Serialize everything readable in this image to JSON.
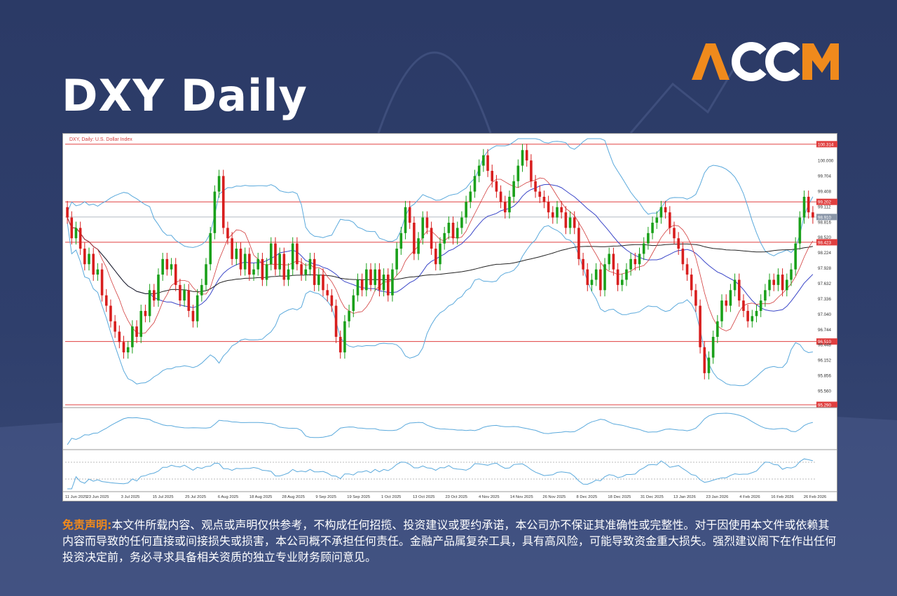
{
  "header": {
    "title": "DXY Daily",
    "logo_text": "ACCM",
    "brand_color": "#f08a1c"
  },
  "disclaimer": {
    "heading": "免责声明:",
    "text": "本文件所载内容、观点或声明仅供参考，不构成任何招揽、投资建议或要约承诺，本公司亦不保证其准确性或完整性。对于因使用本文件或依赖其内容而导致的任何直接或间接损失或损害，本公司概不承担任何责任。金融产品属复杂工具，具有高风险，可能导致资金重大损失。强烈建议阁下在作出任何投资决定前，务必寻求具备相关资质的独立专业财务顾问意见。"
  },
  "chart_data": {
    "type": "candlestick",
    "title": "DXY, Daily: U.S. Dollar Index",
    "price_ticks": [
      "100.314",
      "100.000",
      "99.704",
      "99.408",
      "99.202",
      "99.112",
      "98.910",
      "98.816",
      "98.520",
      "98.423",
      "98.224",
      "97.928",
      "97.632",
      "97.336",
      "97.040",
      "96.744",
      "96.510",
      "96.448",
      "96.152",
      "95.856",
      "95.560",
      "95.290"
    ],
    "ylim": [
      95.29,
      100.42
    ],
    "horizontal_levels": [
      100.314,
      99.202,
      98.423,
      96.51,
      95.29
    ],
    "current_price": 98.91,
    "x_ticks": [
      "11 Jun 2025",
      "23 Jun 2025",
      "3 Jul 2025",
      "15 Jul 2025",
      "25 Jul 2025",
      "6 Aug 2025",
      "18 Aug 2025",
      "28 Aug 2025",
      "9 Sep 2025",
      "19 Sep 2025",
      "1 Oct 2025",
      "13 Oct 2025",
      "23 Oct 2025",
      "4 Nov 2025",
      "14 Nov 2025",
      "26 Nov 2025",
      "8 Dec 2025",
      "18 Dec 2025",
      "31 Dec 2025",
      "13 Jan 2026",
      "23 Jan 2026",
      "4 Feb 2026",
      "16 Feb 2026",
      "26 Feb 2026"
    ],
    "close": [
      98.9,
      98.5,
      98.7,
      98.3,
      98.0,
      98.2,
      97.8,
      97.9,
      97.4,
      97.2,
      96.9,
      96.7,
      96.5,
      96.3,
      96.4,
      96.8,
      96.6,
      97.1,
      97.0,
      97.5,
      97.3,
      97.8,
      98.1,
      97.9,
      98.0,
      97.6,
      97.3,
      97.5,
      97.1,
      96.9,
      97.4,
      97.6,
      98.0,
      98.6,
      99.4,
      99.7,
      98.7,
      98.5,
      98.1,
      98.3,
      97.9,
      98.2,
      97.8,
      97.9,
      98.1,
      97.7,
      98.0,
      98.4,
      97.9,
      98.2,
      97.7,
      97.9,
      98.4,
      98.0,
      97.8,
      97.9,
      98.1,
      97.6,
      97.8,
      97.5,
      97.4,
      97.2,
      96.6,
      96.3,
      96.9,
      97.1,
      97.4,
      97.7,
      97.5,
      97.9,
      97.6,
      97.9,
      97.5,
      97.8,
      97.4,
      97.9,
      98.3,
      98.6,
      99.1,
      98.8,
      98.2,
      98.5,
      98.9,
      98.7,
      98.3,
      98.0,
      98.4,
      98.6,
      98.8,
      98.5,
      98.7,
      98.9,
      99.2,
      99.4,
      99.7,
      99.9,
      100.1,
      99.8,
      99.6,
      99.4,
      99.2,
      99.0,
      99.3,
      99.6,
      99.9,
      100.2,
      100.0,
      99.6,
      99.4,
      99.3,
      99.2,
      99.0,
      98.9,
      99.1,
      99.0,
      98.7,
      98.9,
      98.7,
      98.1,
      97.9,
      97.6,
      97.7,
      97.9,
      97.5,
      98.0,
      98.2,
      97.9,
      97.6,
      97.7,
      97.9,
      98.1,
      98.0,
      98.2,
      98.4,
      98.6,
      98.8,
      98.9,
      99.1,
      99.0,
      98.7,
      98.5,
      98.3,
      98.0,
      97.8,
      97.5,
      97.2,
      96.4,
      95.9,
      96.2,
      96.6,
      96.9,
      97.3,
      97.2,
      97.5,
      97.7,
      97.3,
      97.1,
      96.9,
      97.0,
      97.1,
      97.3,
      97.5,
      97.7,
      97.6,
      97.8,
      97.5,
      97.7,
      97.9,
      98.4,
      98.9,
      99.3,
      99.0,
      98.9
    ]
  }
}
